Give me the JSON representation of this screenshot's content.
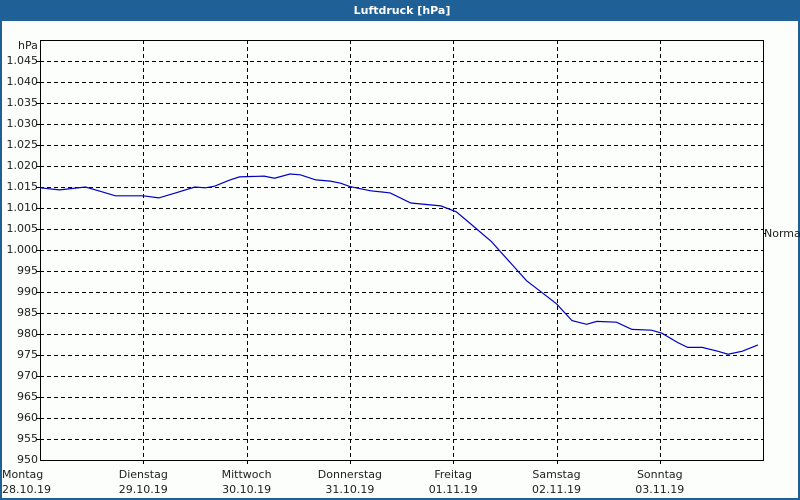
{
  "window": {
    "title": "Luftdruck [hPa]"
  },
  "chart": {
    "unit_label": "hPa",
    "right_label": "Normal",
    "y_ticks": [
      "1.045",
      "1.040",
      "1.035",
      "1.030",
      "1.025",
      "1.020",
      "1.015",
      "1.010",
      "1.005",
      "1.000",
      "995",
      "990",
      "985",
      "980",
      "975",
      "970",
      "965",
      "960",
      "955",
      "950"
    ],
    "x_labels": [
      {
        "day": "Montag",
        "date": "28.10.19"
      },
      {
        "day": "Dienstag",
        "date": "29.10.19"
      },
      {
        "day": "Mittwoch",
        "date": "30.10.19"
      },
      {
        "day": "Donnerstag",
        "date": "31.10.19"
      },
      {
        "day": "Freitag",
        "date": "01.11.19"
      },
      {
        "day": "Samstag",
        "date": "02.11.19"
      },
      {
        "day": "Sonntag",
        "date": "03.11.19"
      }
    ],
    "line_color": "#0000c0",
    "frame_color": "#000000",
    "title_bar_color": "#1f6196"
  },
  "chart_data": {
    "type": "line",
    "title": "Luftdruck [hPa]",
    "xlabel": "",
    "ylabel": "hPa",
    "ylim": [
      950,
      1050
    ],
    "grid": true,
    "categories": [
      "Montag 28.10.19",
      "Dienstag 29.10.19",
      "Mittwoch 30.10.19",
      "Donnerstag 31.10.19",
      "Freitag 01.11.19",
      "Samstag 02.11.19",
      "Sonntag 03.11.19"
    ],
    "x_days": [
      0,
      0.19,
      0.44,
      0.58,
      0.73,
      1.0,
      1.15,
      1.3,
      1.5,
      1.6,
      1.69,
      1.83,
      1.93,
      2.17,
      2.27,
      2.42,
      2.52,
      2.67,
      2.81,
      2.91,
      3.0,
      3.2,
      3.39,
      3.59,
      3.88,
      4.03,
      4.17,
      4.37,
      4.56,
      4.71,
      4.9,
      5.0,
      5.15,
      5.29,
      5.39,
      5.58,
      5.73,
      5.92,
      6.02,
      6.17,
      6.27,
      6.41,
      6.56,
      6.66,
      6.8,
      6.95
    ],
    "series": [
      {
        "name": "Luftdruck",
        "values": [
          1014.8,
          1014.3,
          1015.0,
          1014.0,
          1012.9,
          1012.9,
          1012.4,
          1013.5,
          1015.0,
          1014.8,
          1015.2,
          1016.6,
          1017.4,
          1017.6,
          1017.1,
          1018.1,
          1017.9,
          1016.7,
          1016.4,
          1015.9,
          1015.1,
          1014.1,
          1013.6,
          1011.2,
          1010.5,
          1009.1,
          1006.2,
          1002.0,
          996.8,
          992.7,
          989.1,
          987.2,
          983.2,
          982.3,
          983.0,
          982.8,
          981.1,
          980.9,
          980.2,
          978.0,
          976.8,
          976.8,
          975.9,
          975.2,
          975.9,
          977.4
        ]
      }
    ],
    "annotations": [
      "Normal"
    ]
  }
}
